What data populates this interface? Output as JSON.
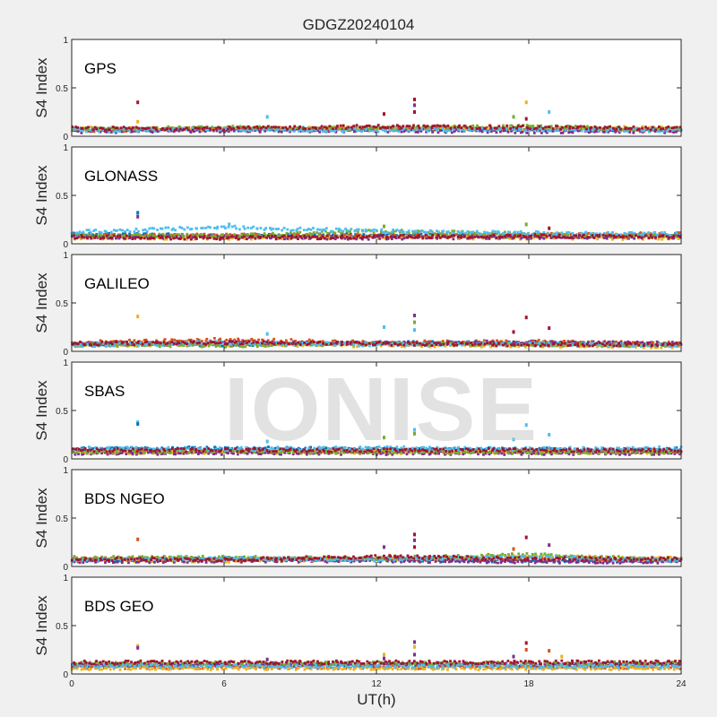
{
  "figure": {
    "title": "GDGZ20240104",
    "xlabel": "UT(h)",
    "watermark": "IONISE"
  },
  "colors": {
    "background": "#f0f0f0",
    "axes_bg": "#ffffff",
    "series": [
      "#0072BD",
      "#D95319",
      "#EDB120",
      "#7E2F8E",
      "#77AC30",
      "#4DBEEE",
      "#A2142F"
    ]
  },
  "chart_data": [
    {
      "type": "scatter",
      "panel_label": "GPS",
      "ylabel": "S4 Index",
      "xlim": [
        0,
        24
      ],
      "ylim": [
        0,
        1
      ],
      "yticks": [
        0,
        0.5,
        1
      ],
      "ytick_labels": [
        "0",
        "0.5",
        "1"
      ],
      "xticks": [
        0,
        6,
        12,
        18,
        24
      ],
      "xtick_labels": [],
      "baseline": [
        {
          "x": [
            0,
            6,
            12,
            18,
            24
          ],
          "y": [
            0.07,
            0.07,
            0.08,
            0.07,
            0.07
          ]
        },
        {
          "x": [
            0,
            6,
            12,
            18,
            24
          ],
          "y": [
            0.06,
            0.08,
            0.07,
            0.08,
            0.06
          ]
        },
        {
          "x": [
            0,
            6,
            12,
            18,
            24
          ],
          "y": [
            0.08,
            0.07,
            0.09,
            0.08,
            0.09
          ]
        },
        {
          "x": [
            0,
            6,
            12,
            18,
            24
          ],
          "y": [
            0.05,
            0.06,
            0.06,
            0.05,
            0.05
          ]
        },
        {
          "x": [
            0,
            6,
            12,
            18,
            24
          ],
          "y": [
            0.07,
            0.09,
            0.08,
            0.1,
            0.07
          ]
        },
        {
          "x": [
            0,
            6,
            12,
            18,
            24
          ],
          "y": [
            0.06,
            0.07,
            0.06,
            0.07,
            0.06
          ]
        },
        {
          "x": [
            0,
            6,
            12,
            18,
            24
          ],
          "y": [
            0.08,
            0.08,
            0.1,
            0.09,
            0.08
          ]
        }
      ],
      "spikes": [
        {
          "x": 2.6,
          "y": 0.35,
          "series": 6
        },
        {
          "x": 2.6,
          "y": 0.15,
          "series": 2
        },
        {
          "x": 7.7,
          "y": 0.2,
          "series": 5
        },
        {
          "x": 12.3,
          "y": 0.23,
          "series": 6
        },
        {
          "x": 13.5,
          "y": 0.38,
          "series": 6
        },
        {
          "x": 13.5,
          "y": 0.32,
          "series": 3
        },
        {
          "x": 13.5,
          "y": 0.25,
          "series": 6
        },
        {
          "x": 17.4,
          "y": 0.2,
          "series": 4
        },
        {
          "x": 17.9,
          "y": 0.35,
          "series": 2
        },
        {
          "x": 17.9,
          "y": 0.18,
          "series": 6
        },
        {
          "x": 18.8,
          "y": 0.25,
          "series": 5
        }
      ]
    },
    {
      "type": "scatter",
      "panel_label": "GLONASS",
      "ylabel": "S4 Index",
      "xlim": [
        0,
        24
      ],
      "ylim": [
        0,
        1
      ],
      "yticks": [
        0,
        0.5,
        1
      ],
      "ytick_labels": [
        "0",
        "0.5",
        "1"
      ],
      "xticks": [
        0,
        6,
        12,
        18,
        24
      ],
      "xtick_labels": [],
      "baseline": [
        {
          "x": [
            0,
            6,
            12,
            18,
            24
          ],
          "y": [
            0.1,
            0.08,
            0.09,
            0.08,
            0.09
          ]
        },
        {
          "x": [
            0,
            6,
            12,
            18,
            24
          ],
          "y": [
            0.08,
            0.09,
            0.08,
            0.09,
            0.1
          ]
        },
        {
          "x": [
            0,
            6,
            12,
            18,
            24
          ],
          "y": [
            0.06,
            0.06,
            0.07,
            0.06,
            0.06
          ]
        },
        {
          "x": [
            0,
            6,
            12,
            18,
            24
          ],
          "y": [
            0.07,
            0.07,
            0.06,
            0.07,
            0.07
          ]
        },
        {
          "x": [
            0,
            6,
            12,
            18,
            24
          ],
          "y": [
            0.09,
            0.08,
            0.13,
            0.1,
            0.08
          ]
        },
        {
          "x": [
            0,
            6,
            12,
            18,
            24
          ],
          "y": [
            0.12,
            0.17,
            0.13,
            0.11,
            0.1
          ]
        },
        {
          "x": [
            0,
            6,
            12,
            18,
            24
          ],
          "y": [
            0.07,
            0.06,
            0.07,
            0.08,
            0.07
          ]
        }
      ],
      "spikes": [
        {
          "x": 2.6,
          "y": 0.32,
          "series": 0
        },
        {
          "x": 2.6,
          "y": 0.28,
          "series": 3
        },
        {
          "x": 6.2,
          "y": 0.2,
          "series": 5
        },
        {
          "x": 12.3,
          "y": 0.18,
          "series": 4
        },
        {
          "x": 17.9,
          "y": 0.2,
          "series": 4
        },
        {
          "x": 18.8,
          "y": 0.16,
          "series": 6
        }
      ]
    },
    {
      "type": "scatter",
      "panel_label": "GALILEO",
      "ylabel": "S4 Index",
      "xlim": [
        0,
        24
      ],
      "ylim": [
        0,
        1
      ],
      "yticks": [
        0,
        0.5,
        1
      ],
      "ytick_labels": [
        "0",
        "0.5",
        "1"
      ],
      "xticks": [
        0,
        6,
        12,
        18,
        24
      ],
      "xtick_labels": [],
      "baseline": [
        {
          "x": [
            0,
            6,
            12,
            18,
            24
          ],
          "y": [
            0.08,
            0.07,
            0.09,
            0.08,
            0.07
          ]
        },
        {
          "x": [
            0,
            6,
            12,
            18,
            24
          ],
          "y": [
            0.09,
            0.12,
            0.09,
            0.1,
            0.08
          ]
        },
        {
          "x": [
            0,
            6,
            12,
            18,
            24
          ],
          "y": [
            0.06,
            0.07,
            0.06,
            0.06,
            0.05
          ]
        },
        {
          "x": [
            0,
            6,
            12,
            18,
            24
          ],
          "y": [
            0.08,
            0.08,
            0.08,
            0.09,
            0.08
          ]
        },
        {
          "x": [
            0,
            6,
            12,
            18,
            24
          ],
          "y": [
            0.07,
            0.06,
            0.08,
            0.07,
            0.06
          ]
        },
        {
          "x": [
            0,
            6,
            12,
            18,
            24
          ],
          "y": [
            0.06,
            0.09,
            0.07,
            0.08,
            0.06
          ]
        },
        {
          "x": [
            0,
            6,
            12,
            18,
            24
          ],
          "y": [
            0.08,
            0.09,
            0.08,
            0.07,
            0.07
          ]
        }
      ],
      "spikes": [
        {
          "x": 2.6,
          "y": 0.36,
          "series": 2
        },
        {
          "x": 7.7,
          "y": 0.18,
          "series": 5
        },
        {
          "x": 12.3,
          "y": 0.25,
          "series": 5
        },
        {
          "x": 13.5,
          "y": 0.37,
          "series": 3
        },
        {
          "x": 13.5,
          "y": 0.3,
          "series": 4
        },
        {
          "x": 13.5,
          "y": 0.22,
          "series": 5
        },
        {
          "x": 17.4,
          "y": 0.2,
          "series": 6
        },
        {
          "x": 17.9,
          "y": 0.35,
          "series": 6
        },
        {
          "x": 18.8,
          "y": 0.24,
          "series": 6
        }
      ]
    },
    {
      "type": "scatter",
      "panel_label": "SBAS",
      "ylabel": "S4 Index",
      "xlim": [
        0,
        24
      ],
      "ylim": [
        0,
        1
      ],
      "yticks": [
        0,
        0.5,
        1
      ],
      "ytick_labels": [
        "0",
        "0.5",
        "1"
      ],
      "xticks": [
        0,
        6,
        12,
        18,
        24
      ],
      "xtick_labels": [],
      "baseline": [
        {
          "x": [
            0,
            6,
            12,
            18,
            24
          ],
          "y": [
            0.1,
            0.11,
            0.1,
            0.1,
            0.1
          ]
        },
        {
          "x": [
            0,
            6,
            12,
            18,
            24
          ],
          "y": [
            0.08,
            0.08,
            0.08,
            0.08,
            0.08
          ]
        },
        {
          "x": [
            0,
            6,
            12,
            18,
            24
          ],
          "y": [
            0.07,
            0.07,
            0.07,
            0.07,
            0.07
          ]
        },
        {
          "x": [
            0,
            6,
            12,
            18,
            24
          ],
          "y": [
            0.06,
            0.06,
            0.06,
            0.06,
            0.06
          ]
        },
        {
          "x": [
            0,
            6,
            12,
            18,
            24
          ],
          "y": [
            0.07,
            0.08,
            0.07,
            0.07,
            0.07
          ]
        },
        {
          "x": [
            0,
            6,
            12,
            18,
            24
          ],
          "y": [
            0.11,
            0.1,
            0.11,
            0.1,
            0.11
          ]
        },
        {
          "x": [
            0,
            6,
            12,
            18,
            24
          ],
          "y": [
            0.09,
            0.09,
            0.09,
            0.09,
            0.09
          ]
        }
      ],
      "spikes": [
        {
          "x": 2.6,
          "y": 0.38,
          "series": 5
        },
        {
          "x": 2.6,
          "y": 0.36,
          "series": 0
        },
        {
          "x": 7.7,
          "y": 0.18,
          "series": 5
        },
        {
          "x": 12.3,
          "y": 0.22,
          "series": 4
        },
        {
          "x": 13.5,
          "y": 0.3,
          "series": 5
        },
        {
          "x": 13.5,
          "y": 0.26,
          "series": 4
        },
        {
          "x": 17.4,
          "y": 0.2,
          "series": 5
        },
        {
          "x": 17.9,
          "y": 0.35,
          "series": 5
        },
        {
          "x": 18.8,
          "y": 0.25,
          "series": 5
        }
      ]
    },
    {
      "type": "scatter",
      "panel_label": "BDS NGEO",
      "ylabel": "S4 Index",
      "xlim": [
        0,
        24
      ],
      "ylim": [
        0,
        1
      ],
      "yticks": [
        0,
        0.5,
        1
      ],
      "ytick_labels": [
        "0",
        "0.5",
        "1"
      ],
      "xticks": [
        0,
        6,
        12,
        18,
        24
      ],
      "xtick_labels": [],
      "baseline": [
        {
          "x": [
            0,
            6,
            12,
            18,
            24
          ],
          "y": [
            0.06,
            0.08,
            0.07,
            0.06,
            0.06
          ]
        },
        {
          "x": [
            0,
            6,
            12,
            18,
            24
          ],
          "y": [
            0.08,
            0.07,
            0.08,
            0.08,
            0.07
          ]
        },
        {
          "x": [
            0,
            6,
            12,
            18,
            24
          ],
          "y": [
            0.07,
            0.06,
            0.07,
            0.1,
            0.08
          ]
        },
        {
          "x": [
            0,
            6,
            12,
            18,
            24
          ],
          "y": [
            0.05,
            0.06,
            0.06,
            0.05,
            0.05
          ]
        },
        {
          "x": [
            0,
            6,
            12,
            18,
            24
          ],
          "y": [
            0.09,
            0.09,
            0.08,
            0.12,
            0.07
          ]
        },
        {
          "x": [
            0,
            6,
            12,
            18,
            24
          ],
          "y": [
            0.07,
            0.08,
            0.07,
            0.1,
            0.06
          ]
        },
        {
          "x": [
            0,
            6,
            12,
            18,
            24
          ],
          "y": [
            0.08,
            0.07,
            0.1,
            0.08,
            0.08
          ]
        }
      ],
      "spikes": [
        {
          "x": 2.6,
          "y": 0.28,
          "series": 1
        },
        {
          "x": 12.3,
          "y": 0.2,
          "series": 3
        },
        {
          "x": 13.5,
          "y": 0.33,
          "series": 6
        },
        {
          "x": 13.5,
          "y": 0.27,
          "series": 3
        },
        {
          "x": 13.5,
          "y": 0.2,
          "series": 6
        },
        {
          "x": 17.4,
          "y": 0.18,
          "series": 1
        },
        {
          "x": 17.9,
          "y": 0.3,
          "series": 6
        },
        {
          "x": 18.8,
          "y": 0.22,
          "series": 3
        }
      ]
    },
    {
      "type": "scatter",
      "panel_label": "BDS GEO",
      "ylabel": "S4 Index",
      "xlim": [
        0,
        24
      ],
      "ylim": [
        0,
        1
      ],
      "yticks": [
        0,
        0.5,
        1
      ],
      "ytick_labels": [
        "0",
        "0.5",
        "1"
      ],
      "xticks": [
        0,
        6,
        12,
        18,
        24
      ],
      "xtick_labels": [
        "0",
        "6",
        "12",
        "18",
        "24"
      ],
      "baseline": [
        {
          "x": [
            0,
            6,
            12,
            18,
            24
          ],
          "y": [
            0.09,
            0.09,
            0.09,
            0.09,
            0.09
          ]
        },
        {
          "x": [
            0,
            6,
            12,
            18,
            24
          ],
          "y": [
            0.07,
            0.07,
            0.07,
            0.07,
            0.07
          ]
        },
        {
          "x": [
            0,
            6,
            12,
            18,
            24
          ],
          "y": [
            0.06,
            0.06,
            0.06,
            0.06,
            0.06
          ]
        },
        {
          "x": [
            0,
            6,
            12,
            18,
            24
          ],
          "y": [
            0.1,
            0.1,
            0.1,
            0.1,
            0.1
          ]
        },
        {
          "x": [
            0,
            6,
            12,
            18,
            24
          ],
          "y": [
            0.11,
            0.11,
            0.11,
            0.11,
            0.11
          ]
        },
        {
          "x": [
            0,
            6,
            12,
            18,
            24
          ],
          "y": [
            0.08,
            0.08,
            0.08,
            0.08,
            0.08
          ]
        },
        {
          "x": [
            0,
            6,
            12,
            18,
            24
          ],
          "y": [
            0.12,
            0.12,
            0.12,
            0.12,
            0.12
          ]
        }
      ],
      "spikes": [
        {
          "x": 2.6,
          "y": 0.29,
          "series": 2
        },
        {
          "x": 2.6,
          "y": 0.27,
          "series": 3
        },
        {
          "x": 7.7,
          "y": 0.15,
          "series": 3
        },
        {
          "x": 12.3,
          "y": 0.2,
          "series": 2
        },
        {
          "x": 12.3,
          "y": 0.16,
          "series": 3
        },
        {
          "x": 13.5,
          "y": 0.33,
          "series": 3
        },
        {
          "x": 13.5,
          "y": 0.28,
          "series": 2
        },
        {
          "x": 13.5,
          "y": 0.2,
          "series": 3
        },
        {
          "x": 17.4,
          "y": 0.18,
          "series": 3
        },
        {
          "x": 17.9,
          "y": 0.32,
          "series": 6
        },
        {
          "x": 17.9,
          "y": 0.25,
          "series": 1
        },
        {
          "x": 18.8,
          "y": 0.24,
          "series": 1
        },
        {
          "x": 19.3,
          "y": 0.18,
          "series": 2
        }
      ]
    }
  ]
}
